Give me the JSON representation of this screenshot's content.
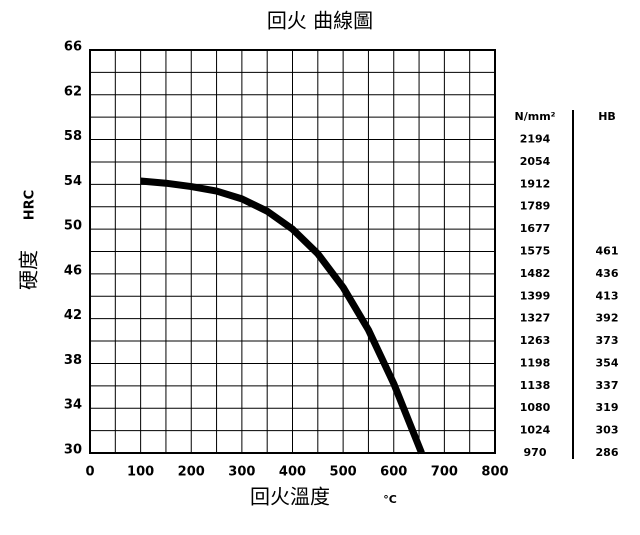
{
  "chart_data": {
    "type": "line",
    "title": "回火 曲線圖",
    "xlabel": "回火溫度",
    "xunit": "°C",
    "ylabel": "硬度",
    "yunit": "HRC",
    "x": [
      100,
      150,
      200,
      250,
      300,
      350,
      400,
      450,
      500,
      550,
      600,
      655
    ],
    "series": [
      {
        "name": "HRC",
        "color": "#000000",
        "values": [
          54.3,
          54.1,
          53.8,
          53.4,
          52.7,
          51.6,
          50.0,
          47.8,
          44.8,
          41.0,
          36.2,
          30.0
        ]
      }
    ],
    "xlim": [
      0,
      800
    ],
    "xticks": [
      0,
      100,
      200,
      300,
      400,
      500,
      600,
      700,
      800
    ],
    "ylim": [
      30,
      66
    ],
    "yticks": [
      30,
      34,
      38,
      42,
      46,
      50,
      54,
      58,
      62,
      66
    ],
    "xgrid": [
      0,
      50,
      100,
      150,
      200,
      250,
      300,
      350,
      400,
      450,
      500,
      550,
      600,
      650,
      700,
      750,
      800
    ],
    "ygrid": [
      30,
      32,
      34,
      36,
      38,
      40,
      42,
      44,
      46,
      48,
      50,
      52,
      54,
      56,
      58,
      60,
      62,
      64,
      66
    ],
    "conversion": {
      "headers": [
        "N/mm²",
        "HB"
      ],
      "tensile": [
        2194,
        2054,
        1912,
        1789,
        1677,
        1575,
        1482,
        1399,
        1327,
        1263,
        1198,
        1138,
        1080,
        1024,
        970
      ],
      "hb": [
        461,
        436,
        413,
        392,
        373,
        354,
        337,
        319,
        303,
        286
      ]
    }
  }
}
